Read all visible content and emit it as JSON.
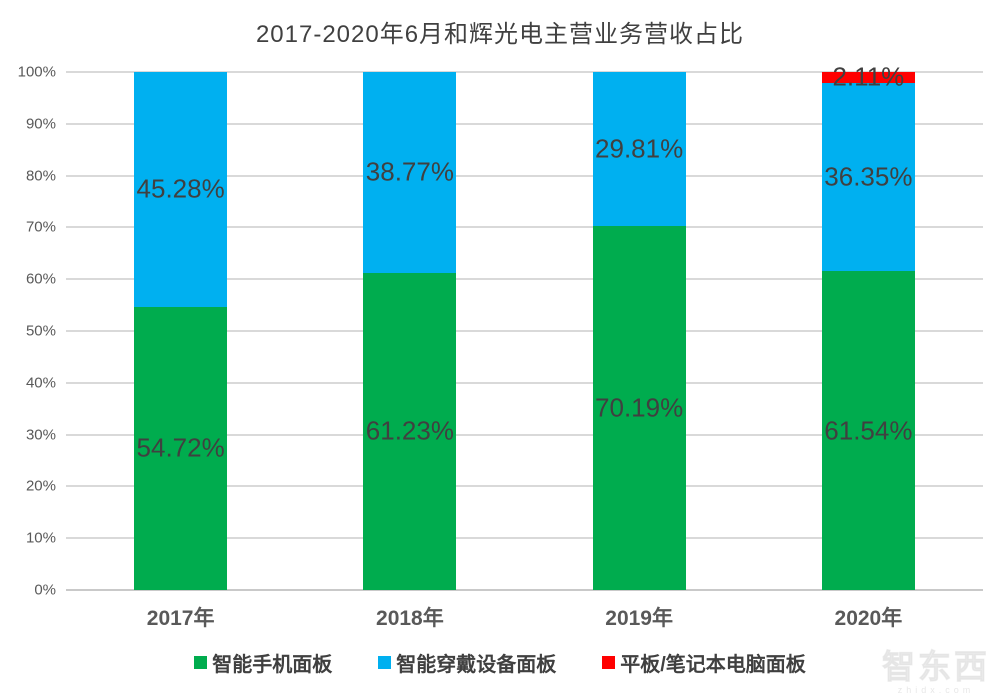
{
  "chart_data": {
    "type": "bar",
    "stacked": true,
    "percent_stacked": true,
    "title": "2017-2020年6月和辉光电主营业务营收占比",
    "categories": [
      "2017年",
      "2018年",
      "2019年",
      "2020年"
    ],
    "series": [
      {
        "name": "智能手机面板",
        "color": "#00AC4E",
        "values": [
          54.72,
          61.23,
          70.19,
          61.54
        ],
        "labels": [
          "54.72%",
          "61.23%",
          "70.19%",
          "61.54%"
        ]
      },
      {
        "name": "智能穿戴设备面板",
        "color": "#00B0F0",
        "values": [
          45.28,
          38.77,
          29.81,
          36.35
        ],
        "labels": [
          "45.28%",
          "38.77%",
          "29.81%",
          "36.35%"
        ]
      },
      {
        "name": "平板/笔记本电脑面板",
        "color": "#FF0000",
        "values": [
          0,
          0,
          0,
          2.11
        ],
        "labels": [
          "",
          "",
          "",
          "2.11%"
        ]
      }
    ],
    "xlabel": "",
    "ylabel": "",
    "ylim": [
      0,
      100
    ],
    "y_ticks": [
      "0%",
      "10%",
      "20%",
      "30%",
      "40%",
      "50%",
      "60%",
      "70%",
      "80%",
      "90%",
      "100%"
    ],
    "grid": true,
    "legend_position": "bottom",
    "gridline_color": "#D9D9D9",
    "label_color": "#404040",
    "axis_text_color": "#595959"
  },
  "watermark": {
    "logo_text": "智东西",
    "sub_text": "zhidx.com"
  }
}
